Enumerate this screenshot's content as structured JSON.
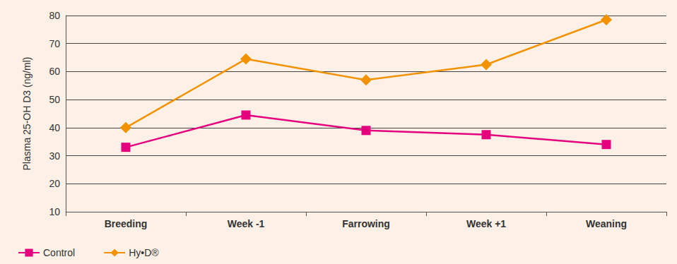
{
  "chart_data": {
    "type": "line",
    "y_label": "Plasma 25-OH D3 (ng/ml)",
    "categories": [
      "Breeding",
      "Week -1",
      "Farrowing",
      "Week +1",
      "Weaning"
    ],
    "series": [
      {
        "name": "Control",
        "color": "#e5007e",
        "marker": "square",
        "values": [
          33,
          44.5,
          39,
          37.5,
          34
        ]
      },
      {
        "name": "Hy•D®",
        "color": "#f39200",
        "marker": "diamond",
        "values": [
          40,
          64.5,
          57,
          62.5,
          78.5
        ]
      }
    ],
    "ylim": [
      10,
      80
    ],
    "yticks": [
      10,
      20,
      30,
      40,
      50,
      60,
      70,
      80
    ],
    "grid": true,
    "legend": "bottom-left"
  }
}
